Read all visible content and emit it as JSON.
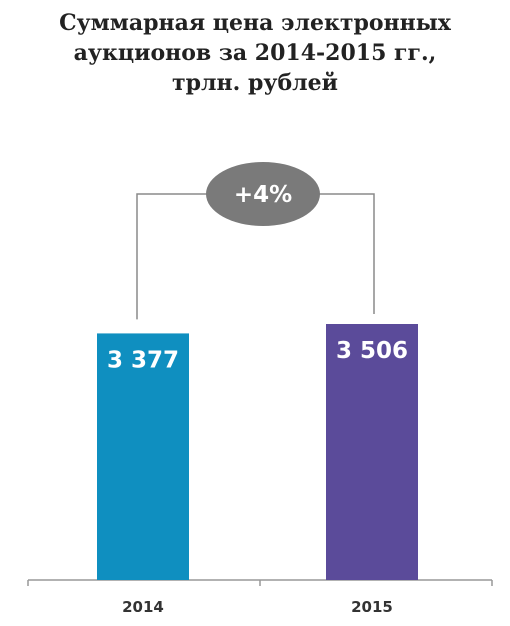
{
  "chart_data": {
    "type": "bar",
    "title_lines": [
      "Суммарная цена электронных",
      "аукционов за 2014-2015 гг.,",
      "трлн. рублей"
    ],
    "categories": [
      "2014",
      "2015"
    ],
    "values": [
      3377,
      3506
    ],
    "value_labels": [
      "3 377",
      "3 506"
    ],
    "colors": [
      "#0f8fc0",
      "#5b4b9a"
    ],
    "change_label": "+4%",
    "change_color": "#7a7a7a",
    "ylim": [
      0,
      3506
    ],
    "grid": false,
    "legend": "none"
  }
}
